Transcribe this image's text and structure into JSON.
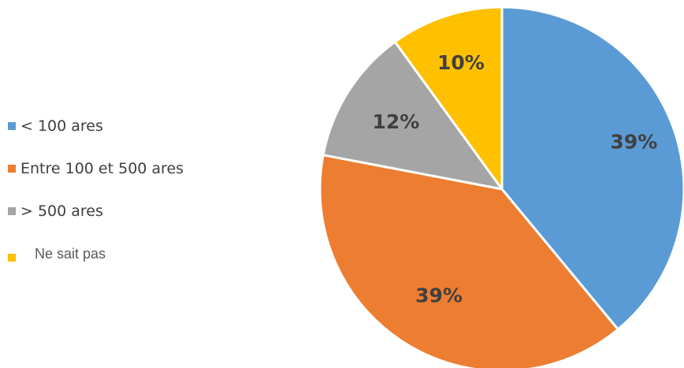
{
  "chart_data": {
    "type": "pie",
    "categories": [
      "< 100 ares",
      "Entre 100 et 500 ares",
      "> 500 ares",
      "Ne sait pas"
    ],
    "values": [
      39,
      39,
      12,
      10
    ],
    "data_labels": [
      "39%",
      "39%",
      "12%",
      "10%"
    ],
    "colors": [
      "#5B9BD5",
      "#ED7D31",
      "#A5A5A5",
      "#FFC000"
    ],
    "legend_position": "left",
    "start_angle_deg": 0,
    "direction": "clockwise",
    "title": ""
  }
}
